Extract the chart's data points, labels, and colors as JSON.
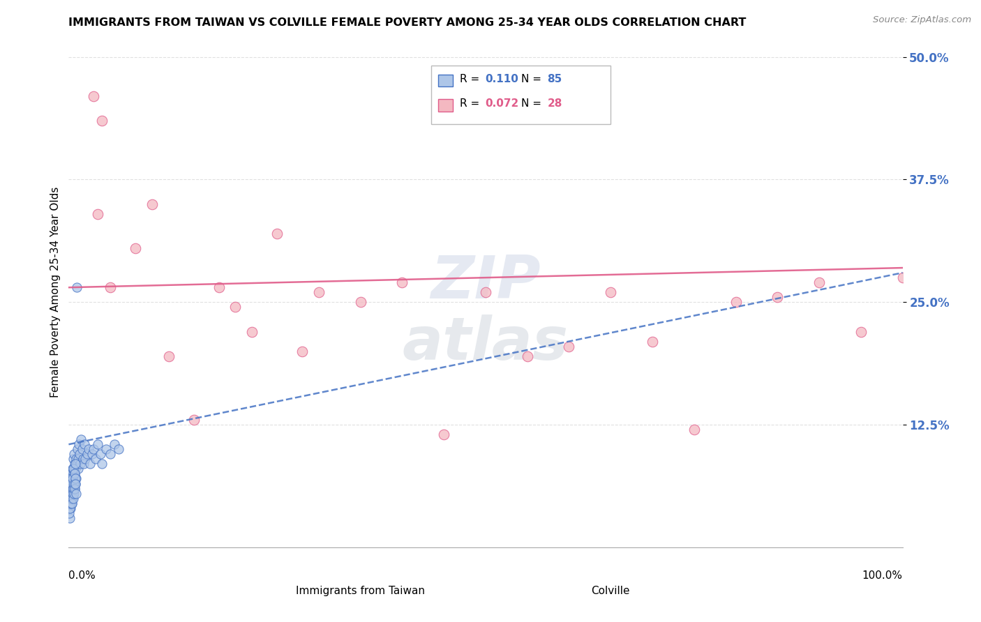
{
  "title": "IMMIGRANTS FROM TAIWAN VS COLVILLE FEMALE POVERTY AMONG 25-34 YEAR OLDS CORRELATION CHART",
  "source": "Source: ZipAtlas.com",
  "xlabel_taiwan": "Immigrants from Taiwan",
  "xlabel_colville": "Colville",
  "ylabel": "Female Poverty Among 25-34 Year Olds",
  "r_taiwan": 0.11,
  "n_taiwan": 85,
  "r_colville": 0.072,
  "n_colville": 28,
  "taiwan_color": "#aec6e8",
  "colville_color": "#f4b8c1",
  "taiwan_edge_color": "#4472C4",
  "colville_edge_color": "#E05C8A",
  "taiwan_line_color": "#4472C4",
  "colville_line_color": "#E05C8A",
  "tick_color": "#4472C4",
  "xlim": [
    0,
    100
  ],
  "ylim": [
    0,
    52
  ],
  "yticks": [
    12.5,
    25.0,
    37.5,
    50.0
  ],
  "watermark_zip": "ZIP",
  "watermark_atlas": "atlas",
  "taiwan_x": [
    0.05,
    0.08,
    0.1,
    0.12,
    0.15,
    0.18,
    0.2,
    0.22,
    0.25,
    0.28,
    0.3,
    0.32,
    0.35,
    0.38,
    0.4,
    0.42,
    0.45,
    0.48,
    0.5,
    0.52,
    0.55,
    0.58,
    0.6,
    0.62,
    0.65,
    0.68,
    0.7,
    0.72,
    0.75,
    0.78,
    0.8,
    0.85,
    0.9,
    0.95,
    1.0,
    1.05,
    1.1,
    1.15,
    1.2,
    1.3,
    1.4,
    1.5,
    1.6,
    1.7,
    1.8,
    1.9,
    2.0,
    2.2,
    2.4,
    2.6,
    2.8,
    3.0,
    3.2,
    3.5,
    3.8,
    4.0,
    4.5,
    5.0,
    5.5,
    6.0,
    0.06,
    0.09,
    0.13,
    0.16,
    0.19,
    0.23,
    0.26,
    0.29,
    0.33,
    0.36,
    0.39,
    0.43,
    0.46,
    0.49,
    0.53,
    0.56,
    0.59,
    0.63,
    0.66,
    0.69,
    0.73,
    0.76,
    0.79,
    0.83,
    0.86
  ],
  "taiwan_y": [
    4.0,
    5.5,
    3.0,
    6.5,
    4.5,
    5.0,
    7.0,
    5.5,
    4.0,
    6.0,
    5.0,
    7.5,
    5.5,
    4.5,
    6.5,
    5.0,
    8.0,
    5.5,
    7.0,
    6.0,
    9.0,
    7.5,
    6.5,
    8.0,
    9.5,
    7.0,
    6.0,
    8.5,
    7.5,
    6.5,
    8.0,
    9.0,
    7.0,
    8.5,
    26.5,
    10.0,
    9.0,
    8.0,
    10.5,
    9.5,
    8.5,
    11.0,
    10.0,
    9.0,
    8.5,
    10.5,
    9.0,
    9.5,
    10.0,
    8.5,
    9.5,
    10.0,
    9.0,
    10.5,
    9.5,
    8.5,
    10.0,
    9.5,
    10.5,
    10.0,
    3.5,
    5.0,
    4.0,
    6.0,
    5.5,
    4.5,
    7.0,
    5.0,
    6.5,
    5.0,
    4.5,
    6.0,
    5.5,
    7.0,
    6.0,
    5.0,
    8.0,
    6.5,
    5.5,
    7.5,
    6.0,
    8.5,
    7.0,
    6.5,
    5.5
  ],
  "colville_x": [
    3.0,
    4.0,
    3.5,
    5.0,
    8.0,
    10.0,
    15.0,
    20.0,
    25.0,
    30.0,
    35.0,
    40.0,
    45.0,
    50.0,
    55.0,
    60.0,
    65.0,
    70.0,
    75.0,
    80.0,
    85.0,
    90.0,
    95.0,
    100.0,
    12.0,
    18.0,
    22.0,
    28.0
  ],
  "colville_y": [
    46.0,
    43.5,
    34.0,
    26.5,
    30.5,
    35.0,
    13.0,
    24.5,
    32.0,
    26.0,
    25.0,
    27.0,
    11.5,
    26.0,
    19.5,
    20.5,
    26.0,
    21.0,
    12.0,
    25.0,
    25.5,
    27.0,
    22.0,
    27.5,
    19.5,
    26.5,
    22.0,
    20.0
  ],
  "tw_line_x0": 0,
  "tw_line_y0": 10.5,
  "tw_line_x1": 100,
  "tw_line_y1": 28.0,
  "co_line_x0": 0,
  "co_line_y0": 26.5,
  "co_line_x1": 100,
  "co_line_y1": 28.5
}
